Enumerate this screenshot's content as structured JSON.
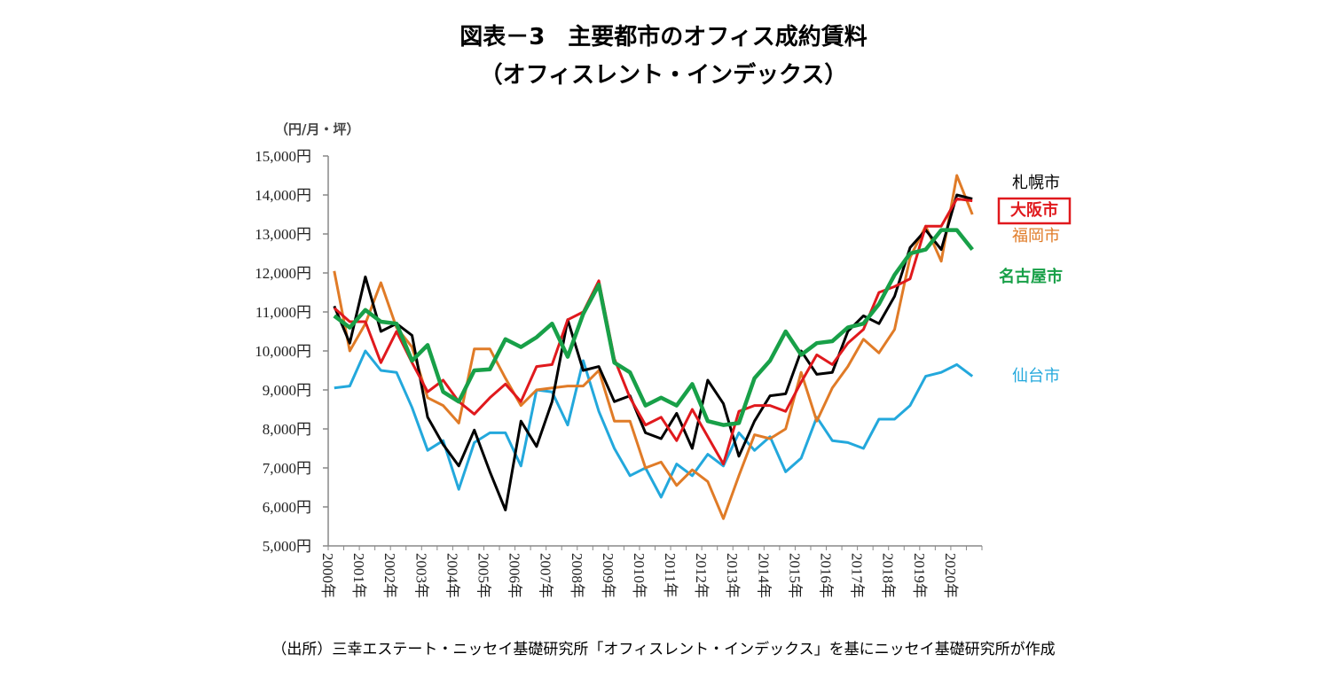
{
  "chart_data": {
    "type": "line",
    "title": "図表－3　主要都市のオフィス成約賃料",
    "subtitle": "（オフィスレント・インデックス）",
    "ylabel": "（円/月・坪）",
    "source": "（出所）三幸エステート・ニッセイ基礎研究所「オフィスレント・インデックス」を基にニッセイ基礎研究所が作成",
    "ylim": [
      5000,
      15000
    ],
    "yticks": [
      "5,000円",
      "6,000円",
      "7,000円",
      "8,000円",
      "9,000円",
      "10,000円",
      "11,000円",
      "12,000円",
      "13,000円",
      "14,000円",
      "15,000円"
    ],
    "xtick_labels": [
      "2000年",
      "2001年",
      "2002年",
      "2003年",
      "2004年",
      "2005年",
      "2006年",
      "2007年",
      "2008年",
      "2009年",
      "2010年",
      "2011年",
      "2012年",
      "2013年",
      "2014年",
      "2015年",
      "2016年",
      "2017年",
      "2018年",
      "2019年",
      "2020年"
    ],
    "x_period": "half-year, 2000 first half to 2020 second half",
    "grid": false,
    "series": [
      {
        "name": "札幌市",
        "color": "#000000",
        "bold": false,
        "boxed": false,
        "values": [
          11150,
          10200,
          11900,
          10500,
          10700,
          10400,
          8300,
          7600,
          7050,
          7970,
          6900,
          5920,
          8200,
          7550,
          8700,
          10800,
          9500,
          9600,
          8700,
          8850,
          7900,
          7750,
          8400,
          7500,
          9250,
          8650,
          7300,
          8200,
          8850,
          8900,
          10000,
          9400,
          9450,
          10500,
          10900,
          10700,
          11400,
          12650,
          13100,
          12600,
          14000,
          13900
        ]
      },
      {
        "name": "大阪市",
        "color": "#e0191d",
        "bold": true,
        "boxed": true,
        "values": [
          11100,
          10750,
          10750,
          9700,
          10500,
          9700,
          8950,
          9250,
          8700,
          8380,
          8800,
          9150,
          8700,
          9600,
          9650,
          10800,
          11000,
          11800,
          9800,
          8800,
          8100,
          8300,
          7700,
          8500,
          7800,
          7100,
          8450,
          8600,
          8600,
          8450,
          9200,
          9900,
          9650,
          10200,
          10550,
          11500,
          11650,
          11850,
          13200,
          13200,
          13900,
          13850
        ]
      },
      {
        "name": "福岡市",
        "color": "#e07b27",
        "bold": false,
        "boxed": false,
        "values": [
          12050,
          10000,
          10700,
          11750,
          10600,
          10100,
          8800,
          8600,
          8150,
          10050,
          10050,
          9300,
          8600,
          9000,
          9050,
          9100,
          9100,
          9500,
          8200,
          8200,
          7000,
          7150,
          6550,
          6950,
          6650,
          5700,
          6800,
          7850,
          7750,
          8000,
          9450,
          8200,
          9050,
          9600,
          10300,
          9950,
          10550,
          12400,
          13200,
          12300,
          14500,
          13500
        ]
      },
      {
        "name": "名古屋市",
        "color": "#18a048",
        "bold": true,
        "boxed": false,
        "values": [
          10900,
          10600,
          11050,
          10750,
          10700,
          9750,
          10150,
          8950,
          8700,
          9500,
          9530,
          10300,
          10100,
          10350,
          10700,
          9850,
          10950,
          11700,
          9700,
          9450,
          8600,
          8800,
          8600,
          9150,
          8200,
          8100,
          8150,
          9300,
          9750,
          10500,
          9900,
          10200,
          10250,
          10600,
          10700,
          11200,
          11950,
          12500,
          12600,
          13100,
          13100,
          12600
        ]
      },
      {
        "name": "仙台市",
        "color": "#23a8dc",
        "bold": false,
        "boxed": false,
        "values": [
          9050,
          9100,
          10000,
          9500,
          9450,
          8550,
          7450,
          7700,
          6450,
          7650,
          7900,
          7900,
          7050,
          9000,
          8950,
          8100,
          9750,
          8450,
          7500,
          6800,
          7000,
          6250,
          7100,
          6800,
          7350,
          7050,
          7900,
          7450,
          7800,
          6900,
          7250,
          8300,
          7700,
          7650,
          7500,
          8250,
          8250,
          8600,
          9350,
          9450,
          9650,
          9350
        ]
      }
    ]
  }
}
